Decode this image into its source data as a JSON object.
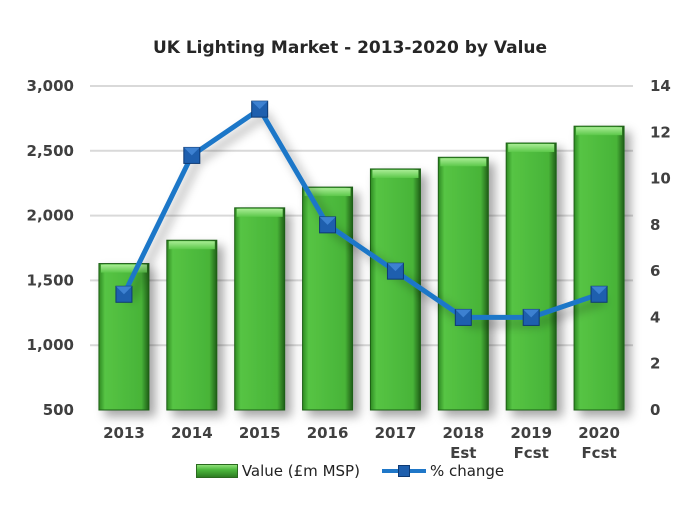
{
  "chart_data": {
    "type": "bar",
    "title": "UK Lighting Market - 2013-2020 by Value",
    "categories": [
      [
        "2013"
      ],
      [
        "2014"
      ],
      [
        "2015"
      ],
      [
        "2016"
      ],
      [
        "2017"
      ],
      [
        "2018",
        "Est"
      ],
      [
        "2019",
        "Fcst"
      ],
      [
        "2020",
        "Fcst"
      ]
    ],
    "series": [
      {
        "name": "Value (£m MSP)",
        "type": "bar",
        "axis": "left",
        "color": "#4cb83c",
        "values": [
          1630,
          1810,
          2060,
          2220,
          2360,
          2450,
          2560,
          2690
        ]
      },
      {
        "name": "% change",
        "type": "line",
        "axis": "right",
        "color": "#1f77c8",
        "values": [
          5,
          11,
          13,
          8,
          6,
          4,
          4,
          5
        ]
      }
    ],
    "y_left": {
      "range": [
        500,
        3000
      ],
      "ticks": [
        "500",
        "1,000",
        "1,500",
        "2,000",
        "2,500",
        "3,000"
      ]
    },
    "y_right": {
      "range": [
        0,
        14
      ],
      "ticks": [
        "0",
        "2",
        "4",
        "6",
        "8",
        "10",
        "12",
        "14"
      ]
    },
    "grid": true,
    "legend": "bottom"
  }
}
